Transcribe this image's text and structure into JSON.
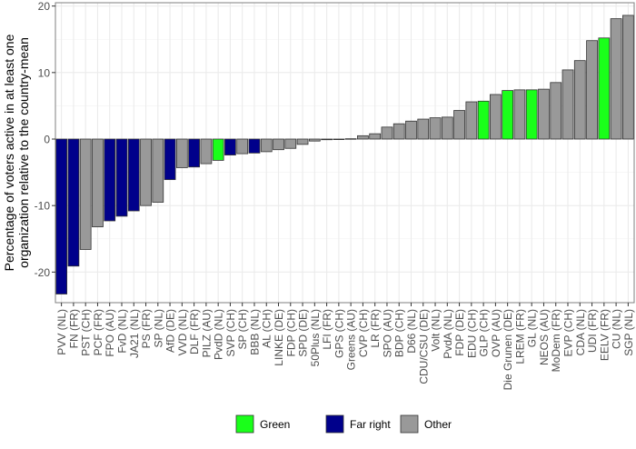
{
  "chart_data": {
    "type": "bar",
    "title": "",
    "xlabel": "",
    "ylabel": "Percentage of voters active in at least one organization relative to the country-mean",
    "ylabel_lines": [
      "Percentage of voters active in at least one",
      "organization relative to the country-mean"
    ],
    "ylim": [
      -24.6,
      20.5
    ],
    "yticks": [
      -20,
      -10,
      0,
      10,
      20
    ],
    "grid": true,
    "legend_placement": "bottom",
    "legend": [
      {
        "key": "green",
        "label": "Green",
        "color": "#1aff1a"
      },
      {
        "key": "far_right",
        "label": "Far right",
        "color": "#00008b"
      },
      {
        "key": "other",
        "label": "Other",
        "color": "#999999"
      }
    ],
    "categories": [
      "PVV (NL)",
      "FN (FR)",
      "PST (CH)",
      "PCF (FR)",
      "FPO (AU)",
      "FvD (NL)",
      "JA21 (NL)",
      "PS (FR)",
      "SP (NL)",
      "AfD (DE)",
      "VVD (NL)",
      "DLF (FR)",
      "PILZ (AU)",
      "PvdD (NL)",
      "SVP (CH)",
      "SP (CH)",
      "BBB (NL)",
      "AL (CH)",
      "LINKE (DE)",
      "FDP (CH)",
      "SPD (DE)",
      "50Plus (NL)",
      "LFI (FR)",
      "GPS (CH)",
      "Greens (AU)",
      "CVP (CH)",
      "LR (FR)",
      "SPO (AU)",
      "BDP (CH)",
      "D66 (NL)",
      "CDU/CSU (DE)",
      "Volt (NL)",
      "PvdA (NL)",
      "FDP (DE)",
      "EDU (CH)",
      "GLP (CH)",
      "OVP (AU)",
      "Die Grunen (DE)",
      "LREM (FR)",
      "GL (NL)",
      "NEOS (AU)",
      "MoDem (FR)",
      "EVP (CH)",
      "CDA (NL)",
      "UDI (FR)",
      "EELV (FR)",
      "CU (NL)",
      "SGP (NL)"
    ],
    "values": [
      -23.3,
      -19.1,
      -16.6,
      -13.2,
      -12.3,
      -11.6,
      -10.8,
      -10.0,
      -9.5,
      -6.1,
      -4.3,
      -4.2,
      -3.7,
      -3.2,
      -2.4,
      -2.2,
      -2.1,
      -1.9,
      -1.6,
      -1.4,
      -0.8,
      -0.3,
      -0.1,
      -0.05,
      0.05,
      0.5,
      0.8,
      1.8,
      2.3,
      2.7,
      3.0,
      3.2,
      3.3,
      4.3,
      5.6,
      5.7,
      6.7,
      7.3,
      7.4,
      7.4,
      7.5,
      8.5,
      10.4,
      11.8,
      14.8,
      15.2,
      18.1,
      18.6
    ],
    "groups": [
      "far_right",
      "far_right",
      "other",
      "other",
      "far_right",
      "far_right",
      "far_right",
      "other",
      "other",
      "far_right",
      "other",
      "far_right",
      "other",
      "green",
      "far_right",
      "other",
      "far_right",
      "other",
      "other",
      "other",
      "other",
      "other",
      "other",
      "other",
      "other",
      "other",
      "other",
      "other",
      "other",
      "other",
      "other",
      "other",
      "other",
      "other",
      "other",
      "green",
      "other",
      "green",
      "other",
      "green",
      "other",
      "other",
      "other",
      "other",
      "other",
      "green",
      "other",
      "other"
    ]
  }
}
